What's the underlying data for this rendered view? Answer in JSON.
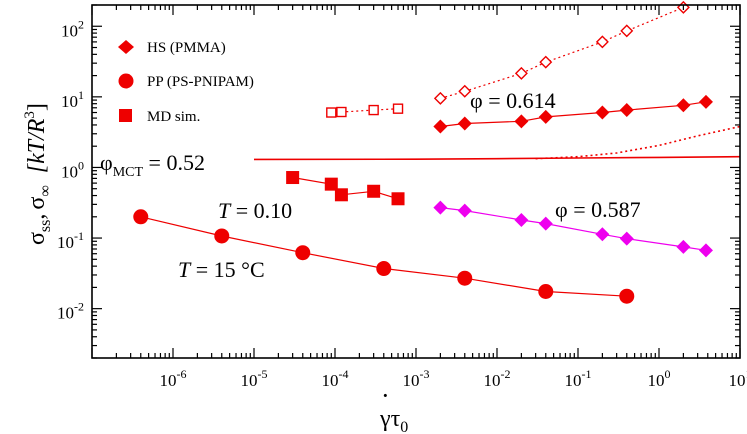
{
  "chart_data": {
    "type": "scatter",
    "x_scale": "log",
    "y_scale": "log",
    "xlim": [
      1e-07,
      10
    ],
    "ylim": [
      0.002,
      200
    ],
    "x_ticks": [
      {
        "value": 1e-06,
        "base": "10",
        "exp": "-6"
      },
      {
        "value": 1e-05,
        "base": "10",
        "exp": "-5"
      },
      {
        "value": 0.0001,
        "base": "10",
        "exp": "-4"
      },
      {
        "value": 0.001,
        "base": "10",
        "exp": "-3"
      },
      {
        "value": 0.01,
        "base": "10",
        "exp": "-2"
      },
      {
        "value": 0.1,
        "base": "10",
        "exp": "-1"
      },
      {
        "value": 1,
        "base": "10",
        "exp": "0"
      },
      {
        "value": 10,
        "base": "10",
        "exp": "1"
      }
    ],
    "y_ticks": [
      {
        "value": 0.01,
        "base": "10",
        "exp": "-2"
      },
      {
        "value": 0.1,
        "base": "10",
        "exp": "-1"
      },
      {
        "value": 1,
        "base": "10",
        "exp": "0"
      },
      {
        "value": 10,
        "base": "10",
        "exp": "1"
      },
      {
        "value": 100,
        "base": "10",
        "exp": "2"
      }
    ],
    "xlabel": {
      "main": "γ",
      "accent": "·",
      "second": "τ",
      "second_sub": "0"
    },
    "ylabel": {
      "s1": "σ",
      "s1_sub": "ss",
      "sep": ",",
      "s2": "σ",
      "s2_sub": "∞",
      "unit": "[kT/R",
      "unit_exp": "3",
      "unit_close": "]"
    },
    "legend": [
      {
        "marker": "diamond",
        "label": "HS (PMMA)"
      },
      {
        "marker": "circle",
        "label": "PP (PS-PNIPAM)"
      },
      {
        "marker": "square",
        "label": "MD sim."
      }
    ],
    "colors": {
      "red": "#ee0000",
      "magenta": "#ee00ee"
    },
    "annotations": {
      "phi_0614": "φ = 0.614",
      "phi_0587": "φ = 0.587",
      "phi_mct": {
        "main": "φ",
        "sub": "MCT",
        "rest": " = 0.52"
      },
      "T_010": {
        "var": "T",
        "rest": " = 0.10"
      },
      "T_15": {
        "var": "T",
        "rest": " = 15 °C"
      }
    },
    "series": [
      {
        "marker": "diamond",
        "fill": "open",
        "color": "red",
        "line": "dotted",
        "x": [
          0.002,
          0.004,
          0.02,
          0.04,
          0.2,
          0.4,
          2
        ],
        "y": [
          9.5,
          12,
          21.5,
          31,
          60,
          86,
          185
        ]
      },
      {
        "marker": "diamond",
        "fill": "filled",
        "color": "red",
        "line": "solid",
        "x": [
          0.002,
          0.004,
          0.02,
          0.04,
          0.2,
          0.4,
          2,
          3.8
        ],
        "y": [
          3.8,
          4.2,
          4.5,
          5.2,
          6,
          6.5,
          7.6,
          8.5
        ]
      },
      {
        "marker": "square",
        "fill": "open",
        "color": "red",
        "line": "dotted",
        "x": [
          9e-05,
          0.00012,
          0.0003,
          0.0006
        ],
        "y": [
          6,
          6.1,
          6.5,
          6.8
        ]
      },
      {
        "marker": "square",
        "fill": "filled",
        "color": "red",
        "line": "solid",
        "x": [
          3e-05,
          9e-05,
          0.00012,
          0.0003,
          0.0006
        ],
        "y": [
          0.72,
          0.58,
          0.41,
          0.46,
          0.36
        ]
      },
      {
        "marker": "diamond",
        "fill": "filled",
        "color": "magenta",
        "line": "solid",
        "x": [
          0.002,
          0.004,
          0.02,
          0.04,
          0.2,
          0.4,
          2,
          3.8
        ],
        "y": [
          0.27,
          0.245,
          0.18,
          0.16,
          0.113,
          0.098,
          0.075,
          0.067
        ]
      },
      {
        "marker": "circle",
        "fill": "filled",
        "color": "red",
        "line": "solid",
        "x": [
          4e-07,
          4e-06,
          4e-05,
          0.0004,
          0.004,
          0.04,
          0.4
        ],
        "y": [
          0.2,
          0.107,
          0.062,
          0.037,
          0.027,
          0.0175,
          0.015
        ]
      }
    ],
    "curves": [
      {
        "name": "MCT solid",
        "color": "red",
        "line": "solid",
        "x": [
          1e-05,
          0.001,
          0.01,
          0.1,
          1,
          10
        ],
        "y": [
          1.3,
          1.31,
          1.33,
          1.36,
          1.39,
          1.42
        ]
      },
      {
        "name": "MCT dotted",
        "color": "red",
        "line": "dotted",
        "x": [
          0.03,
          0.1,
          0.3,
          1,
          3,
          10
        ],
        "y": [
          1.33,
          1.42,
          1.6,
          2.05,
          2.8,
          3.8
        ]
      }
    ]
  }
}
